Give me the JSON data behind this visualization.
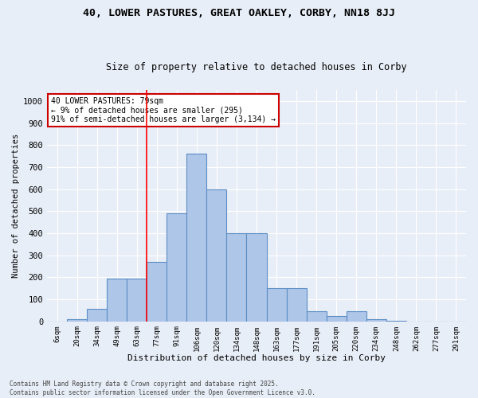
{
  "title": "40, LOWER PASTURES, GREAT OAKLEY, CORBY, NN18 8JJ",
  "subtitle": "Size of property relative to detached houses in Corby",
  "xlabel": "Distribution of detached houses by size in Corby",
  "ylabel": "Number of detached properties",
  "bins": [
    "6sqm",
    "20sqm",
    "34sqm",
    "49sqm",
    "63sqm",
    "77sqm",
    "91sqm",
    "106sqm",
    "120sqm",
    "134sqm",
    "148sqm",
    "163sqm",
    "177sqm",
    "191sqm",
    "205sqm",
    "220sqm",
    "234sqm",
    "248sqm",
    "262sqm",
    "277sqm",
    "291sqm"
  ],
  "values": [
    0,
    10,
    55,
    195,
    195,
    270,
    490,
    760,
    600,
    400,
    400,
    150,
    150,
    45,
    25,
    45,
    10,
    2,
    0,
    0,
    0
  ],
  "bar_color": "#aec6e8",
  "bar_edge_color": "#5b8ec4",
  "bg_color": "#e8eef7",
  "grid_color": "#ffffff",
  "annotation_text": "40 LOWER PASTURES: 79sqm\n← 9% of detached houses are smaller (295)\n91% of semi-detached houses are larger (3,134) →",
  "annotation_box_color": "#ffffff",
  "annotation_box_edge": "#cc0000",
  "footer": "Contains HM Land Registry data © Crown copyright and database right 2025.\nContains public sector information licensed under the Open Government Licence v3.0.",
  "ylim": [
    0,
    1050
  ],
  "yticks": [
    0,
    100,
    200,
    300,
    400,
    500,
    600,
    700,
    800,
    900,
    1000
  ],
  "red_line_index": 5
}
